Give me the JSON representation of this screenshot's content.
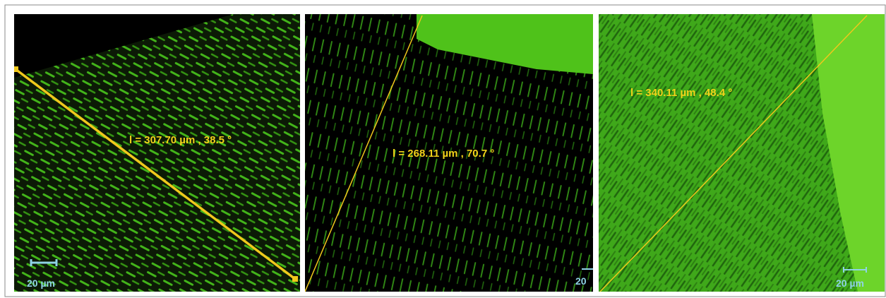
{
  "panels": [
    {
      "measurement": "l = 307.70 µm ,  38.5 °",
      "scale_bar": "20 µm"
    },
    {
      "measurement": "l = 268.11 µm ,  70.7 °",
      "scale_bar": "20"
    },
    {
      "measurement": "l = 340.11 µm ,  48.4 °",
      "scale_bar": "20 µm"
    }
  ]
}
